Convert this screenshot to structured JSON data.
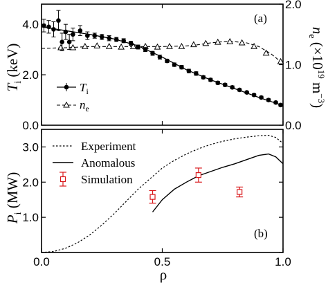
{
  "chart_data": [
    {
      "panel": "(a)",
      "type": "line",
      "xlim": [
        0.0,
        1.0
      ],
      "left_axis": {
        "label_main": "T",
        "label_sub": "i",
        "label_unit": " (keV)",
        "ylim": [
          0.0,
          4.8
        ],
        "ticks": [
          "0.0",
          "2.0",
          "4.0"
        ],
        "tick_values": [
          0.0,
          2.0,
          4.0
        ]
      },
      "right_axis": {
        "label_main": "n",
        "label_sub": "e",
        "label_unit": " (×10",
        "label_exp": "19",
        "label_end": " m",
        "label_end_exp": "−3",
        "label_close": ")",
        "ylim": [
          0.0,
          2.0
        ],
        "ticks": [
          "0.0",
          "1.0",
          "2.0"
        ],
        "tick_values": [
          0.0,
          1.0,
          2.0
        ]
      },
      "series": [
        {
          "name_main": "T",
          "name_sub": "i",
          "axis": "left",
          "style": "solid-filled-circles-errorbars",
          "color": "#000000",
          "points": [
            {
              "x": 0.01,
              "y": 3.95,
              "err": 0.25
            },
            {
              "x": 0.03,
              "y": 3.9,
              "err": 0.25
            },
            {
              "x": 0.05,
              "y": 3.8,
              "err": 0.3
            },
            {
              "x": 0.07,
              "y": 4.15,
              "err": 0.4
            },
            {
              "x": 0.085,
              "y": 3.3,
              "err": 0.35
            },
            {
              "x": 0.1,
              "y": 3.7,
              "err": 0.3
            },
            {
              "x": 0.115,
              "y": 3.3,
              "err": 0.3
            },
            {
              "x": 0.13,
              "y": 3.6,
              "err": 0.25
            },
            {
              "x": 0.16,
              "y": 3.75,
              "err": 0.2
            },
            {
              "x": 0.19,
              "y": 3.55,
              "err": 0.15
            },
            {
              "x": 0.22,
              "y": 3.55,
              "err": 0.1
            },
            {
              "x": 0.25,
              "y": 3.5,
              "err": 0.1
            },
            {
              "x": 0.28,
              "y": 3.45,
              "err": 0.1
            },
            {
              "x": 0.31,
              "y": 3.4,
              "err": 0.08
            },
            {
              "x": 0.34,
              "y": 3.35,
              "err": 0.08
            },
            {
              "x": 0.37,
              "y": 3.25,
              "err": 0.08
            },
            {
              "x": 0.4,
              "y": 3.1,
              "err": 0.08
            },
            {
              "x": 0.43,
              "y": 3.0,
              "err": 0.08
            },
            {
              "x": 0.46,
              "y": 2.85,
              "err": 0.08
            },
            {
              "x": 0.49,
              "y": 2.7,
              "err": 0.08
            },
            {
              "x": 0.52,
              "y": 2.55,
              "err": 0.07
            },
            {
              "x": 0.55,
              "y": 2.4,
              "err": 0.07
            },
            {
              "x": 0.58,
              "y": 2.3,
              "err": 0.07
            },
            {
              "x": 0.61,
              "y": 2.15,
              "err": 0.07
            },
            {
              "x": 0.64,
              "y": 2.05,
              "err": 0.07
            },
            {
              "x": 0.67,
              "y": 1.9,
              "err": 0.06
            },
            {
              "x": 0.7,
              "y": 1.8,
              "err": 0.06
            },
            {
              "x": 0.73,
              "y": 1.68,
              "err": 0.06
            },
            {
              "x": 0.76,
              "y": 1.6,
              "err": 0.06
            },
            {
              "x": 0.79,
              "y": 1.5,
              "err": 0.06
            },
            {
              "x": 0.82,
              "y": 1.4,
              "err": 0.05
            },
            {
              "x": 0.85,
              "y": 1.3,
              "err": 0.05
            },
            {
              "x": 0.88,
              "y": 1.2,
              "err": 0.05
            },
            {
              "x": 0.91,
              "y": 1.1,
              "err": 0.05
            },
            {
              "x": 0.94,
              "y": 1.0,
              "err": 0.05
            },
            {
              "x": 0.97,
              "y": 0.9,
              "err": 0.05
            },
            {
              "x": 0.99,
              "y": 0.8,
              "err": 0.05
            }
          ],
          "fit": {
            "x": [
              0.0,
              0.1,
              0.2,
              0.3,
              0.4,
              0.5,
              0.6,
              0.7,
              0.8,
              0.9,
              1.0
            ],
            "y": [
              3.9,
              3.75,
              3.6,
              3.42,
              3.15,
              2.7,
              2.2,
              1.8,
              1.45,
              1.1,
              0.78
            ]
          }
        },
        {
          "name_main": "n",
          "name_sub": "e",
          "axis": "right",
          "style": "dashed-open-triangles",
          "color": "#000000",
          "x": [
            0.08,
            0.13,
            0.18,
            0.23,
            0.28,
            0.33,
            0.38,
            0.43,
            0.48,
            0.53,
            0.58,
            0.63,
            0.68,
            0.73,
            0.78,
            0.83,
            0.88,
            0.93,
            0.99
          ],
          "y": [
            1.28,
            1.28,
            1.3,
            1.31,
            1.3,
            1.29,
            1.3,
            1.3,
            1.29,
            1.3,
            1.3,
            1.33,
            1.35,
            1.37,
            1.38,
            1.36,
            1.3,
            1.19,
            1.05
          ],
          "line_x": [
            0.0,
            0.1,
            0.2,
            0.3,
            0.4,
            0.5,
            0.6,
            0.65,
            0.7,
            0.75,
            0.8,
            0.85,
            0.9,
            0.95,
            1.0
          ],
          "line_y": [
            1.27,
            1.28,
            1.3,
            1.3,
            1.3,
            1.3,
            1.31,
            1.33,
            1.36,
            1.38,
            1.38,
            1.36,
            1.3,
            1.18,
            1.02
          ]
        }
      ],
      "legend": "middle-left"
    },
    {
      "panel": "(b)",
      "type": "line",
      "xlabel": "ρ",
      "xlim": [
        0.0,
        1.0
      ],
      "xticks": [
        "0.0",
        "0.5",
        "1.0"
      ],
      "xtick_values": [
        0.0,
        0.5,
        1.0
      ],
      "ylabel_main": "P",
      "ylabel_sub": "i",
      "ylabel_unit": " (MW)",
      "ylim": [
        0.0,
        3.5
      ],
      "yticks": [
        "0.0",
        "1.0",
        "2.0",
        "3.0"
      ],
      "ytick_values": [
        0.0,
        1.0,
        2.0,
        3.0
      ],
      "series": [
        {
          "name": "Experiment",
          "style": "dotted",
          "color": "#000000",
          "x": [
            0.0,
            0.05,
            0.1,
            0.15,
            0.2,
            0.25,
            0.3,
            0.35,
            0.4,
            0.45,
            0.5,
            0.55,
            0.6,
            0.65,
            0.7,
            0.75,
            0.8,
            0.85,
            0.9,
            0.94,
            0.97,
            1.0
          ],
          "y": [
            0.0,
            0.03,
            0.12,
            0.28,
            0.5,
            0.78,
            1.1,
            1.45,
            1.8,
            2.1,
            2.4,
            2.62,
            2.8,
            2.95,
            3.07,
            3.16,
            3.23,
            3.28,
            3.32,
            3.33,
            3.27,
            3.1
          ]
        },
        {
          "name": "Anomalous",
          "style": "solid",
          "color": "#000000",
          "x": [
            0.46,
            0.5,
            0.55,
            0.6,
            0.65,
            0.7,
            0.75,
            0.8,
            0.85,
            0.9,
            0.94,
            0.97,
            1.0
          ],
          "y": [
            1.15,
            1.5,
            1.8,
            2.0,
            2.18,
            2.3,
            2.42,
            2.52,
            2.64,
            2.76,
            2.8,
            2.72,
            2.52
          ]
        },
        {
          "name": "Simulation",
          "style": "open-square-errorbars",
          "color": "#d9191c",
          "points": [
            {
              "x": 0.46,
              "y": 1.58,
              "err": 0.18
            },
            {
              "x": 0.65,
              "y": 2.2,
              "err": 0.2
            },
            {
              "x": 0.82,
              "y": 1.72,
              "err": 0.14
            }
          ]
        }
      ],
      "legend": "top-left"
    }
  ]
}
